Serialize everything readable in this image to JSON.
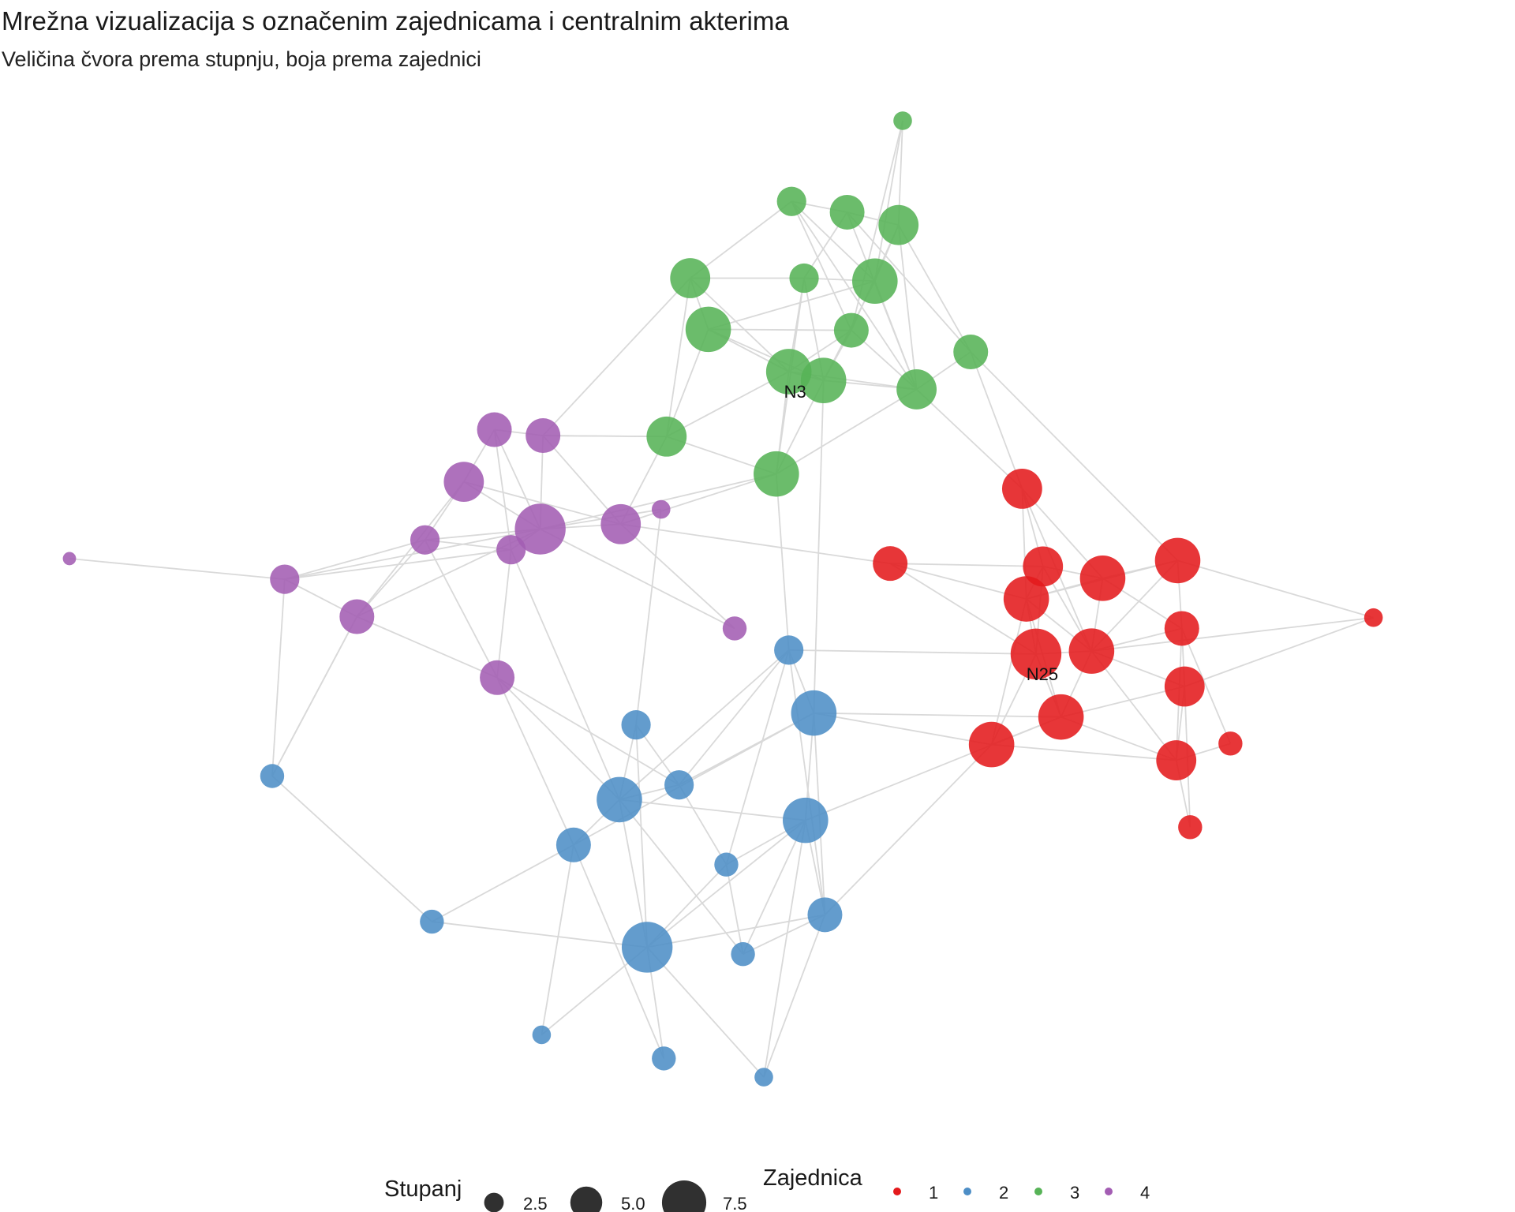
{
  "header": {
    "title": "Mrežna vizualizacija s označenim zajednicama i centralnim akterima",
    "subtitle": "Veličina čvora prema stupnju, boja prema zajednici"
  },
  "community_colors": {
    "1": "#e41a1c",
    "2": "#4d8ec6",
    "3": "#57b357",
    "4": "#a35db3"
  },
  "chart_data": {
    "type": "network",
    "x_range": [
      0,
      100
    ],
    "y_range": [
      0,
      100
    ],
    "nodes": [
      {
        "id": "g_top",
        "x": 60.0,
        "y": 0.0,
        "degree": 2,
        "community": 3
      },
      {
        "id": "g1",
        "x": 52.0,
        "y": 8.2,
        "degree": 4,
        "community": 3
      },
      {
        "id": "g2",
        "x": 56.0,
        "y": 9.3,
        "degree": 5,
        "community": 3
      },
      {
        "id": "g3",
        "x": 59.7,
        "y": 10.6,
        "degree": 6,
        "community": 3
      },
      {
        "id": "g4",
        "x": 44.7,
        "y": 16.0,
        "degree": 6,
        "community": 3
      },
      {
        "id": "g5",
        "x": 52.9,
        "y": 16.0,
        "degree": 4,
        "community": 3
      },
      {
        "id": "g6",
        "x": 58.0,
        "y": 16.3,
        "degree": 7,
        "community": 3
      },
      {
        "id": "g7",
        "x": 46.0,
        "y": 21.2,
        "degree": 7,
        "community": 3
      },
      {
        "id": "g8",
        "x": 56.3,
        "y": 21.3,
        "degree": 5,
        "community": 3
      },
      {
        "id": "g9",
        "x": 64.9,
        "y": 23.5,
        "degree": 5,
        "community": 3
      },
      {
        "id": "N3",
        "x": 51.8,
        "y": 25.5,
        "degree": 7,
        "community": 3,
        "label": "N3"
      },
      {
        "id": "g10",
        "x": 54.3,
        "y": 26.4,
        "degree": 7,
        "community": 3
      },
      {
        "id": "g11",
        "x": 61.0,
        "y": 27.3,
        "degree": 6,
        "community": 3
      },
      {
        "id": "g12",
        "x": 43.0,
        "y": 32.1,
        "degree": 6,
        "community": 3
      },
      {
        "id": "g13",
        "x": 50.9,
        "y": 35.9,
        "degree": 7,
        "community": 3
      },
      {
        "id": "p1",
        "x": 30.6,
        "y": 31.4,
        "degree": 5,
        "community": 4
      },
      {
        "id": "p2",
        "x": 34.1,
        "y": 32.0,
        "degree": 5,
        "community": 4
      },
      {
        "id": "p3",
        "x": 28.4,
        "y": 36.7,
        "degree": 6,
        "community": 4
      },
      {
        "id": "p4",
        "x": 42.6,
        "y": 39.5,
        "degree": 2,
        "community": 4
      },
      {
        "id": "p5",
        "x": 33.9,
        "y": 41.5,
        "degree": 8,
        "community": 4
      },
      {
        "id": "p6",
        "x": 39.7,
        "y": 41.0,
        "degree": 6,
        "community": 4
      },
      {
        "id": "p7",
        "x": 25.6,
        "y": 42.6,
        "degree": 4,
        "community": 4
      },
      {
        "id": "p8",
        "x": 31.8,
        "y": 43.6,
        "degree": 4,
        "community": 4
      },
      {
        "id": "p_far",
        "x": 0.0,
        "y": 44.5,
        "degree": 1,
        "community": 4
      },
      {
        "id": "p9",
        "x": 15.5,
        "y": 46.6,
        "degree": 4,
        "community": 4
      },
      {
        "id": "p10",
        "x": 20.7,
        "y": 50.4,
        "degree": 5,
        "community": 4
      },
      {
        "id": "p11",
        "x": 47.9,
        "y": 51.6,
        "degree": 3,
        "community": 4
      },
      {
        "id": "p12",
        "x": 30.8,
        "y": 56.6,
        "degree": 5,
        "community": 4
      },
      {
        "id": "r1",
        "x": 68.6,
        "y": 37.4,
        "degree": 6,
        "community": 1
      },
      {
        "id": "r2",
        "x": 59.1,
        "y": 45.0,
        "degree": 5,
        "community": 1
      },
      {
        "id": "r3",
        "x": 70.1,
        "y": 45.3,
        "degree": 6,
        "community": 1
      },
      {
        "id": "r4",
        "x": 74.4,
        "y": 46.5,
        "degree": 7,
        "community": 1
      },
      {
        "id": "r5",
        "x": 79.8,
        "y": 44.7,
        "degree": 7,
        "community": 1
      },
      {
        "id": "r6",
        "x": 68.9,
        "y": 48.6,
        "degree": 7,
        "community": 1
      },
      {
        "id": "r7",
        "x": 80.1,
        "y": 51.6,
        "degree": 5,
        "community": 1
      },
      {
        "id": "r_far",
        "x": 93.9,
        "y": 50.5,
        "degree": 2,
        "community": 1
      },
      {
        "id": "N25",
        "x": 69.6,
        "y": 54.2,
        "degree": 8,
        "community": 1,
        "label": "N25"
      },
      {
        "id": "r8",
        "x": 73.6,
        "y": 53.9,
        "degree": 7,
        "community": 1
      },
      {
        "id": "r9",
        "x": 80.3,
        "y": 57.5,
        "degree": 6,
        "community": 1
      },
      {
        "id": "r10",
        "x": 71.4,
        "y": 60.6,
        "degree": 7,
        "community": 1
      },
      {
        "id": "r11",
        "x": 66.4,
        "y": 63.4,
        "degree": 7,
        "community": 1
      },
      {
        "id": "r12",
        "x": 83.6,
        "y": 63.3,
        "degree": 3,
        "community": 1
      },
      {
        "id": "r13",
        "x": 79.7,
        "y": 65.0,
        "degree": 6,
        "community": 1
      },
      {
        "id": "r14",
        "x": 80.7,
        "y": 71.8,
        "degree": 3,
        "community": 1
      },
      {
        "id": "b1",
        "x": 51.8,
        "y": 53.8,
        "degree": 4,
        "community": 2
      },
      {
        "id": "b2",
        "x": 53.6,
        "y": 60.2,
        "degree": 7,
        "community": 2
      },
      {
        "id": "b3",
        "x": 40.8,
        "y": 61.4,
        "degree": 4,
        "community": 2
      },
      {
        "id": "b4",
        "x": 14.6,
        "y": 66.6,
        "degree": 3,
        "community": 2
      },
      {
        "id": "b5",
        "x": 43.9,
        "y": 67.5,
        "degree": 4,
        "community": 2
      },
      {
        "id": "b6",
        "x": 39.6,
        "y": 69.0,
        "degree": 7,
        "community": 2
      },
      {
        "id": "b7",
        "x": 53.0,
        "y": 71.1,
        "degree": 7,
        "community": 2
      },
      {
        "id": "b8",
        "x": 36.3,
        "y": 73.6,
        "degree": 5,
        "community": 2
      },
      {
        "id": "b9",
        "x": 47.3,
        "y": 75.6,
        "degree": 3,
        "community": 2
      },
      {
        "id": "b10",
        "x": 26.1,
        "y": 81.4,
        "degree": 3,
        "community": 2
      },
      {
        "id": "b11",
        "x": 54.4,
        "y": 80.7,
        "degree": 5,
        "community": 2
      },
      {
        "id": "b12",
        "x": 41.6,
        "y": 84.0,
        "degree": 8,
        "community": 2
      },
      {
        "id": "b13",
        "x": 48.5,
        "y": 84.7,
        "degree": 3,
        "community": 2
      },
      {
        "id": "b14",
        "x": 34.0,
        "y": 92.9,
        "degree": 2,
        "community": 2
      },
      {
        "id": "b15",
        "x": 42.8,
        "y": 95.3,
        "degree": 3,
        "community": 2
      },
      {
        "id": "b16",
        "x": 50.0,
        "y": 97.2,
        "degree": 2,
        "community": 2
      }
    ],
    "edges": [
      [
        "g_top",
        "g3"
      ],
      [
        "g_top",
        "g6"
      ],
      [
        "g_top",
        "g8"
      ],
      [
        "g1",
        "g2"
      ],
      [
        "g1",
        "g4"
      ],
      [
        "g1",
        "g6"
      ],
      [
        "g1",
        "g8"
      ],
      [
        "g1",
        "g11"
      ],
      [
        "g2",
        "g3"
      ],
      [
        "g2",
        "g5"
      ],
      [
        "g2",
        "g11"
      ],
      [
        "g2",
        "g9"
      ],
      [
        "g3",
        "g6"
      ],
      [
        "g3",
        "g8"
      ],
      [
        "g3",
        "g9"
      ],
      [
        "g3",
        "g11"
      ],
      [
        "g4",
        "g5"
      ],
      [
        "g4",
        "g7"
      ],
      [
        "g4",
        "N3"
      ],
      [
        "g4",
        "g12"
      ],
      [
        "g5",
        "g6"
      ],
      [
        "g5",
        "g13"
      ],
      [
        "g5",
        "g10"
      ],
      [
        "g5",
        "N3"
      ],
      [
        "g6",
        "g7"
      ],
      [
        "g6",
        "g10"
      ],
      [
        "g6",
        "g11"
      ],
      [
        "g7",
        "g8"
      ],
      [
        "g7",
        "N3"
      ],
      [
        "g7",
        "g10"
      ],
      [
        "g8",
        "g11"
      ],
      [
        "g8",
        "g10"
      ],
      [
        "g8",
        "N3"
      ],
      [
        "g9",
        "g11"
      ],
      [
        "g9",
        "r1"
      ],
      [
        "g9",
        "r5"
      ],
      [
        "N3",
        "g10"
      ],
      [
        "N3",
        "g13"
      ],
      [
        "N3",
        "g12"
      ],
      [
        "N3",
        "g11"
      ],
      [
        "N3",
        "g7"
      ],
      [
        "g10",
        "g13"
      ],
      [
        "g10",
        "b2"
      ],
      [
        "g10",
        "g11"
      ],
      [
        "g11",
        "g13"
      ],
      [
        "g11",
        "r1"
      ],
      [
        "g12",
        "p2"
      ],
      [
        "g12",
        "p6"
      ],
      [
        "g12",
        "g13"
      ],
      [
        "g12",
        "g7"
      ],
      [
        "g13",
        "b1"
      ],
      [
        "g13",
        "p5"
      ],
      [
        "g4",
        "p2"
      ],
      [
        "p1",
        "p2"
      ],
      [
        "p1",
        "p3"
      ],
      [
        "p1",
        "p5"
      ],
      [
        "p1",
        "p8"
      ],
      [
        "p2",
        "p5"
      ],
      [
        "p2",
        "p6"
      ],
      [
        "p2",
        "g12"
      ],
      [
        "p3",
        "p5"
      ],
      [
        "p3",
        "p7"
      ],
      [
        "p3",
        "p10"
      ],
      [
        "p3",
        "p6"
      ],
      [
        "p4",
        "p5"
      ],
      [
        "p4",
        "b3"
      ],
      [
        "p5",
        "p6"
      ],
      [
        "p5",
        "p7"
      ],
      [
        "p5",
        "p9"
      ],
      [
        "p5",
        "p8"
      ],
      [
        "p5",
        "p10"
      ],
      [
        "p6",
        "p11"
      ],
      [
        "p6",
        "r2"
      ],
      [
        "p6",
        "g13"
      ],
      [
        "p7",
        "p8"
      ],
      [
        "p7",
        "p9"
      ],
      [
        "p7",
        "p12"
      ],
      [
        "p8",
        "p9"
      ],
      [
        "p8",
        "p12"
      ],
      [
        "p8",
        "b6"
      ],
      [
        "p_far",
        "p9"
      ],
      [
        "p9",
        "p10"
      ],
      [
        "p9",
        "b4"
      ],
      [
        "p10",
        "p12"
      ],
      [
        "p10",
        "p7"
      ],
      [
        "p10",
        "b4"
      ],
      [
        "p11",
        "p5"
      ],
      [
        "p12",
        "b6"
      ],
      [
        "p12",
        "b8"
      ],
      [
        "r1",
        "r3"
      ],
      [
        "r1",
        "r6"
      ],
      [
        "r1",
        "r4"
      ],
      [
        "r1",
        "r8"
      ],
      [
        "r2",
        "r6"
      ],
      [
        "r2",
        "r3"
      ],
      [
        "r2",
        "N25"
      ],
      [
        "r3",
        "r4"
      ],
      [
        "r3",
        "r6"
      ],
      [
        "r3",
        "r8"
      ],
      [
        "r3",
        "N25"
      ],
      [
        "r4",
        "r5"
      ],
      [
        "r4",
        "r8"
      ],
      [
        "r4",
        "r7"
      ],
      [
        "r4",
        "r6"
      ],
      [
        "r5",
        "r7"
      ],
      [
        "r5",
        "r_far"
      ],
      [
        "r5",
        "r6"
      ],
      [
        "r5",
        "r8"
      ],
      [
        "r6",
        "N25"
      ],
      [
        "r6",
        "r8"
      ],
      [
        "r6",
        "r10"
      ],
      [
        "r7",
        "r8"
      ],
      [
        "r7",
        "r9"
      ],
      [
        "r7",
        "r12"
      ],
      [
        "r7",
        "r13"
      ],
      [
        "r_far",
        "r9"
      ],
      [
        "r_far",
        "r8"
      ],
      [
        "N25",
        "r8"
      ],
      [
        "N25",
        "r10"
      ],
      [
        "N25",
        "r11"
      ],
      [
        "N25",
        "b1"
      ],
      [
        "r8",
        "r9"
      ],
      [
        "r8",
        "r10"
      ],
      [
        "r8",
        "r13"
      ],
      [
        "r9",
        "r10"
      ],
      [
        "r9",
        "r13"
      ],
      [
        "r9",
        "r14"
      ],
      [
        "r10",
        "r11"
      ],
      [
        "r10",
        "r13"
      ],
      [
        "r10",
        "b2"
      ],
      [
        "r11",
        "r13"
      ],
      [
        "r11",
        "b11"
      ],
      [
        "r11",
        "r6"
      ],
      [
        "r13",
        "r14"
      ],
      [
        "r13",
        "r12"
      ],
      [
        "b1",
        "b2"
      ],
      [
        "b1",
        "b5"
      ],
      [
        "b1",
        "b6"
      ],
      [
        "b1",
        "b9"
      ],
      [
        "b2",
        "b7"
      ],
      [
        "b2",
        "b5"
      ],
      [
        "b2",
        "b8"
      ],
      [
        "b2",
        "r11"
      ],
      [
        "b3",
        "b6"
      ],
      [
        "b3",
        "b12"
      ],
      [
        "b3",
        "b5"
      ],
      [
        "b4",
        "b10"
      ],
      [
        "b4",
        "p10"
      ],
      [
        "b5",
        "b6"
      ],
      [
        "b5",
        "b9"
      ],
      [
        "b5",
        "p12"
      ],
      [
        "b6",
        "b7"
      ],
      [
        "b6",
        "b8"
      ],
      [
        "b6",
        "b12"
      ],
      [
        "b6",
        "b13"
      ],
      [
        "b7",
        "b9"
      ],
      [
        "b7",
        "b11"
      ],
      [
        "b7",
        "b12"
      ],
      [
        "b7",
        "b13"
      ],
      [
        "b7",
        "b16"
      ],
      [
        "b7",
        "r10"
      ],
      [
        "b8",
        "b10"
      ],
      [
        "b8",
        "b14"
      ],
      [
        "b8",
        "b15"
      ],
      [
        "b9",
        "b13"
      ],
      [
        "b9",
        "b12"
      ],
      [
        "b10",
        "b12"
      ],
      [
        "b11",
        "b12"
      ],
      [
        "b11",
        "b16"
      ],
      [
        "b11",
        "b1"
      ],
      [
        "b12",
        "b14"
      ],
      [
        "b12",
        "b15"
      ],
      [
        "b12",
        "b16"
      ],
      [
        "b13",
        "b11"
      ],
      [
        "b2",
        "b11"
      ]
    ]
  },
  "legend": {
    "size_title": "Stupanj",
    "size_items": [
      {
        "label": "2.5",
        "value": 2.5
      },
      {
        "label": "5.0",
        "value": 5.0
      },
      {
        "label": "7.5",
        "value": 7.5
      }
    ],
    "color_title": "Zajednica",
    "color_items": [
      {
        "label": "1",
        "community": 1
      },
      {
        "label": "2",
        "community": 2
      },
      {
        "label": "3",
        "community": 3
      },
      {
        "label": "4",
        "community": 4
      }
    ]
  }
}
